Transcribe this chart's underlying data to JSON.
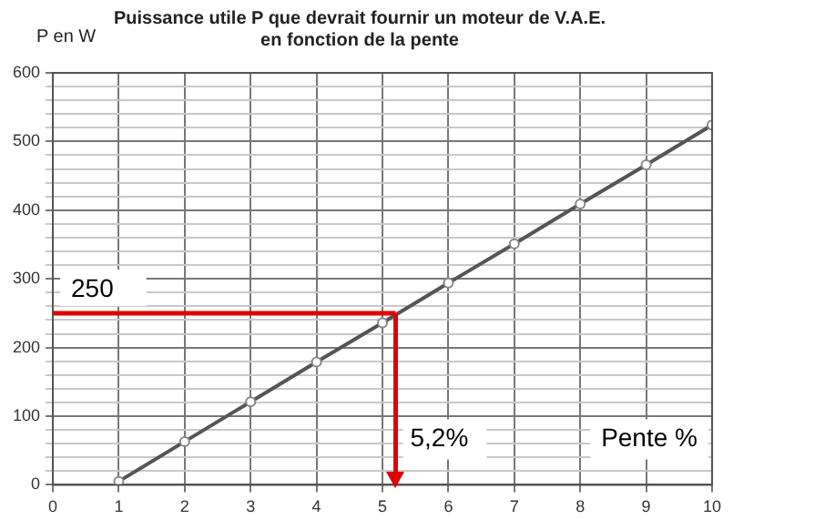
{
  "chart_data": {
    "type": "line",
    "title": "Puissance utile P que devrait fournir un moteur de V.A.E.\nen fonction de la pente",
    "xlabel": "Pente %",
    "ylabel": "P en W",
    "x": [
      1,
      2,
      3,
      4,
      5,
      6,
      7,
      8,
      9,
      10
    ],
    "series": [
      {
        "color": "#555555",
        "values": [
          5,
          63,
          121,
          179,
          236,
          294,
          351,
          409,
          466,
          524
        ]
      }
    ],
    "xlim": [
      0,
      10
    ],
    "xticks": [
      0,
      1,
      2,
      3,
      4,
      5,
      6,
      7,
      8,
      9,
      10
    ],
    "ylim": [
      0,
      600
    ],
    "yticks": [
      0,
      {
        "value": 20,
        "label": null
      },
      {
        "value": 40,
        "label": null
      },
      {
        "value": 60,
        "label": null
      },
      {
        "value": 80,
        "label": null
      },
      100,
      {
        "value": 120,
        "label": null
      },
      {
        "value": 140,
        "label": null
      },
      {
        "value": 160,
        "label": null
      },
      {
        "value": 180,
        "label": null
      },
      200,
      {
        "value": 220,
        "label": null
      },
      {
        "value": 240,
        "label": null
      },
      {
        "value": 260,
        "label": null
      },
      {
        "value": 280,
        "label": null
      },
      300,
      {
        "value": 320,
        "label": null
      },
      {
        "value": 340,
        "label": null
      },
      {
        "value": 360,
        "label": null
      },
      {
        "value": 380,
        "label": null
      },
      400,
      {
        "value": 420,
        "label": null
      },
      {
        "value": 440,
        "label": null
      },
      {
        "value": 460,
        "label": null
      },
      {
        "value": 480,
        "label": null
      },
      500,
      {
        "value": 520,
        "label": null
      },
      {
        "value": 540,
        "label": null
      },
      {
        "value": 560,
        "label": null
      },
      {
        "value": 580,
        "label": null
      },
      600
    ],
    "ref_lines": [
      {
        "axis": "y",
        "value": 250,
        "label": "250",
        "color": "#e00000"
      },
      {
        "axis": "x",
        "value": 5.2,
        "label": "5,2%",
        "color": "#e00000"
      }
    ],
    "grid": true,
    "legend": false,
    "marker": "circle",
    "line_style": "solid"
  }
}
